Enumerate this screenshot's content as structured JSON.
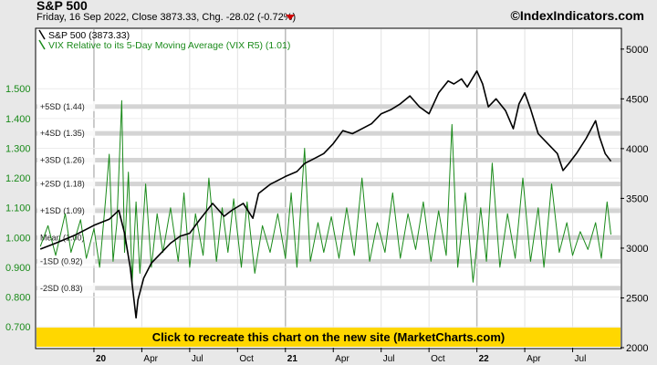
{
  "header": {
    "title": "S&P 500",
    "subtitle": "Friday, 16 Sep 2022, Close 3873.33, Chg. -28.02 (-0.72%)",
    "brand": "©IndexIndicators.com",
    "change_color": "#d00000"
  },
  "banner": {
    "text": "Click to recreate this chart on the new site (MarketCharts.com)",
    "color": "#ffd700"
  },
  "chart_data": {
    "type": "line",
    "left_axis": {
      "ylim": [
        0.63,
        1.7
      ],
      "ticks": [
        0.7,
        0.8,
        0.9,
        1.0,
        1.1,
        1.2,
        1.3,
        1.4,
        1.5
      ],
      "tick_labels": [
        "0.700",
        "0.800",
        "0.900",
        "1.000",
        "1.100",
        "1.200",
        "1.300",
        "1.400",
        "1.500"
      ]
    },
    "right_axis": {
      "ylim": [
        2000,
        5200
      ],
      "ticks": [
        2000,
        2500,
        3000,
        3500,
        4000,
        4500,
        5000
      ],
      "tick_labels": [
        "2000",
        "2500",
        "3000",
        "3500",
        "4000",
        "4500",
        "5000"
      ]
    },
    "x_axis": {
      "xlim": [
        2019.7,
        2022.75
      ],
      "ticks": [
        {
          "x": 2020.0,
          "label": "20",
          "bold": true
        },
        {
          "x": 2020.25,
          "label": "Apr",
          "bold": false
        },
        {
          "x": 2020.5,
          "label": "Jul",
          "bold": false
        },
        {
          "x": 2020.75,
          "label": "Oct",
          "bold": false
        },
        {
          "x": 2021.0,
          "label": "21",
          "bold": true
        },
        {
          "x": 2021.25,
          "label": "Apr",
          "bold": false
        },
        {
          "x": 2021.5,
          "label": "Jul",
          "bold": false
        },
        {
          "x": 2021.75,
          "label": "Oct",
          "bold": false
        },
        {
          "x": 2022.0,
          "label": "22",
          "bold": true
        },
        {
          "x": 2022.25,
          "label": "Apr",
          "bold": false
        },
        {
          "x": 2022.5,
          "label": "Jul",
          "bold": false
        }
      ]
    },
    "sd_bands": [
      {
        "label": "+5SD (1.44)",
        "value": 1.44
      },
      {
        "label": "+4SD (1.35)",
        "value": 1.35
      },
      {
        "label": "+3SD (1.26)",
        "value": 1.26
      },
      {
        "label": "+2SD (1.18)",
        "value": 1.18
      },
      {
        "label": "+1SD (1.09)",
        "value": 1.09
      },
      {
        "label": "Mean (1.00)",
        "value": 1.0
      },
      {
        "label": "-1SD (0.92)",
        "value": 0.92
      },
      {
        "label": "-2SD (0.83)",
        "value": 0.83
      }
    ],
    "series": [
      {
        "name": "S&P 500 (3873.33)",
        "axis": "right",
        "color": "#000000",
        "points": [
          [
            2019.72,
            2990
          ],
          [
            2019.8,
            3050
          ],
          [
            2019.9,
            3130
          ],
          [
            2020.0,
            3230
          ],
          [
            2020.08,
            3290
          ],
          [
            2020.13,
            3380
          ],
          [
            2020.16,
            3150
          ],
          [
            2020.19,
            2800
          ],
          [
            2020.22,
            2300
          ],
          [
            2020.23,
            2480
          ],
          [
            2020.26,
            2700
          ],
          [
            2020.3,
            2850
          ],
          [
            2020.35,
            2950
          ],
          [
            2020.4,
            3050
          ],
          [
            2020.45,
            3120
          ],
          [
            2020.5,
            3150
          ],
          [
            2020.55,
            3280
          ],
          [
            2020.62,
            3450
          ],
          [
            2020.68,
            3320
          ],
          [
            2020.72,
            3380
          ],
          [
            2020.78,
            3450
          ],
          [
            2020.83,
            3300
          ],
          [
            2020.86,
            3550
          ],
          [
            2020.92,
            3640
          ],
          [
            2021.0,
            3720
          ],
          [
            2021.06,
            3770
          ],
          [
            2021.1,
            3850
          ],
          [
            2021.15,
            3900
          ],
          [
            2021.2,
            3950
          ],
          [
            2021.25,
            4050
          ],
          [
            2021.3,
            4180
          ],
          [
            2021.35,
            4150
          ],
          [
            2021.4,
            4200
          ],
          [
            2021.45,
            4250
          ],
          [
            2021.5,
            4350
          ],
          [
            2021.55,
            4390
          ],
          [
            2021.6,
            4450
          ],
          [
            2021.65,
            4530
          ],
          [
            2021.7,
            4420
          ],
          [
            2021.75,
            4350
          ],
          [
            2021.8,
            4560
          ],
          [
            2021.85,
            4680
          ],
          [
            2021.88,
            4650
          ],
          [
            2021.92,
            4700
          ],
          [
            2021.95,
            4620
          ],
          [
            2022.0,
            4780
          ],
          [
            2022.03,
            4650
          ],
          [
            2022.06,
            4420
          ],
          [
            2022.1,
            4500
          ],
          [
            2022.15,
            4380
          ],
          [
            2022.19,
            4200
          ],
          [
            2022.22,
            4450
          ],
          [
            2022.25,
            4560
          ],
          [
            2022.28,
            4400
          ],
          [
            2022.32,
            4150
          ],
          [
            2022.37,
            4050
          ],
          [
            2022.42,
            3950
          ],
          [
            2022.45,
            3780
          ],
          [
            2022.48,
            3850
          ],
          [
            2022.52,
            3950
          ],
          [
            2022.57,
            4100
          ],
          [
            2022.62,
            4280
          ],
          [
            2022.64,
            4120
          ],
          [
            2022.67,
            3950
          ],
          [
            2022.7,
            3873
          ]
        ]
      },
      {
        "name": "VIX Relative to its 5-Day Moving Average (VIX R5) (1.01)",
        "axis": "left",
        "color": "#1a8a1a",
        "points": [
          [
            2019.72,
            0.97
          ],
          [
            2019.76,
            1.04
          ],
          [
            2019.8,
            0.94
          ],
          [
            2019.85,
            1.08
          ],
          [
            2019.88,
            0.95
          ],
          [
            2019.93,
            1.06
          ],
          [
            2019.96,
            0.93
          ],
          [
            2020.0,
            1.03
          ],
          [
            2020.03,
            0.9
          ],
          [
            2020.06,
            1.12
          ],
          [
            2020.08,
            1.28
          ],
          [
            2020.1,
            0.92
          ],
          [
            2020.12,
            1.05
          ],
          [
            2020.145,
            1.46
          ],
          [
            2020.16,
            0.95
          ],
          [
            2020.18,
            1.22
          ],
          [
            2020.2,
            0.85
          ],
          [
            2020.22,
            1.12
          ],
          [
            2020.24,
            0.88
          ],
          [
            2020.27,
            1.18
          ],
          [
            2020.3,
            0.9
          ],
          [
            2020.33,
            1.08
          ],
          [
            2020.36,
            0.95
          ],
          [
            2020.4,
            1.1
          ],
          [
            2020.44,
            0.92
          ],
          [
            2020.47,
            1.15
          ],
          [
            2020.5,
            0.9
          ],
          [
            2020.53,
            1.08
          ],
          [
            2020.57,
            0.94
          ],
          [
            2020.6,
            1.2
          ],
          [
            2020.64,
            0.92
          ],
          [
            2020.67,
            1.1
          ],
          [
            2020.7,
            0.95
          ],
          [
            2020.73,
            1.13
          ],
          [
            2020.77,
            0.9
          ],
          [
            2020.8,
            1.12
          ],
          [
            2020.84,
            0.88
          ],
          [
            2020.88,
            1.04
          ],
          [
            2020.92,
            0.95
          ],
          [
            2020.96,
            1.08
          ],
          [
            2021.0,
            0.93
          ],
          [
            2021.03,
            1.15
          ],
          [
            2021.06,
            0.9
          ],
          [
            2021.1,
            1.3
          ],
          [
            2021.13,
            0.92
          ],
          [
            2021.17,
            1.05
          ],
          [
            2021.2,
            0.95
          ],
          [
            2021.24,
            1.07
          ],
          [
            2021.28,
            0.93
          ],
          [
            2021.32,
            1.1
          ],
          [
            2021.36,
            0.94
          ],
          [
            2021.4,
            1.2
          ],
          [
            2021.44,
            0.92
          ],
          [
            2021.48,
            1.05
          ],
          [
            2021.52,
            0.95
          ],
          [
            2021.56,
            1.15
          ],
          [
            2021.6,
            0.93
          ],
          [
            2021.64,
            1.08
          ],
          [
            2021.68,
            0.96
          ],
          [
            2021.72,
            1.12
          ],
          [
            2021.76,
            0.92
          ],
          [
            2021.8,
            1.09
          ],
          [
            2021.84,
            0.94
          ],
          [
            2021.87,
            1.38
          ],
          [
            2021.9,
            0.9
          ],
          [
            2021.94,
            1.15
          ],
          [
            2021.98,
            0.85
          ],
          [
            2022.02,
            1.1
          ],
          [
            2022.05,
            0.92
          ],
          [
            2022.08,
            1.25
          ],
          [
            2022.12,
            0.9
          ],
          [
            2022.16,
            1.08
          ],
          [
            2022.2,
            0.93
          ],
          [
            2022.24,
            1.2
          ],
          [
            2022.28,
            0.92
          ],
          [
            2022.32,
            1.1
          ],
          [
            2022.35,
            0.9
          ],
          [
            2022.39,
            1.18
          ],
          [
            2022.43,
            0.95
          ],
          [
            2022.47,
            1.05
          ],
          [
            2022.5,
            0.94
          ],
          [
            2022.54,
            1.02
          ],
          [
            2022.58,
            0.96
          ],
          [
            2022.62,
            1.05
          ],
          [
            2022.65,
            0.93
          ],
          [
            2022.68,
            1.12
          ],
          [
            2022.7,
            1.01
          ]
        ]
      }
    ]
  }
}
